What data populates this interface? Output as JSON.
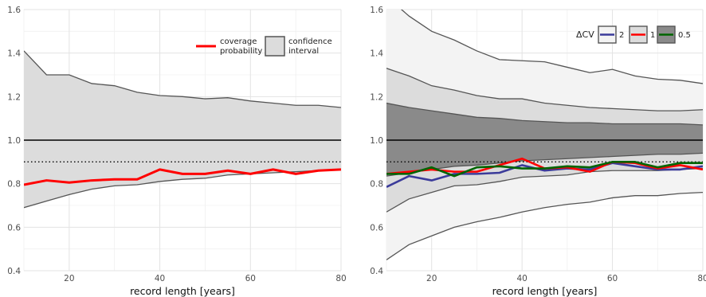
{
  "chart_data": [
    {
      "type": "line",
      "title": "",
      "xlabel": "record length [years]",
      "ylabel": "",
      "xlim": [
        10,
        80
      ],
      "ylim": [
        0.4,
        1.6
      ],
      "xticks": [
        20,
        40,
        60,
        80
      ],
      "yticks": [
        0.4,
        0.6,
        0.8,
        1.0,
        1.2,
        1.4,
        1.6
      ],
      "xtick_labels": [
        "20",
        "40",
        "60",
        "80"
      ],
      "ytick_labels": [
        "0.4",
        "0.6",
        "0.8",
        "1.0",
        "1.2",
        "1.4",
        "1.6"
      ],
      "grid": true,
      "legend_position": "top-right",
      "legend": {
        "line_label": [
          "coverage",
          "probability"
        ],
        "band_label": [
          "confidence",
          "interval"
        ]
      },
      "reference_lines": [
        {
          "y": 1.0,
          "style": "solid",
          "color": "#000000"
        },
        {
          "y": 0.9,
          "style": "dotted",
          "color": "#000000"
        }
      ],
      "x": [
        10,
        15,
        20,
        25,
        30,
        35,
        40,
        45,
        50,
        55,
        60,
        65,
        70,
        75,
        80
      ],
      "bands": [
        {
          "upper": [
            1.41,
            1.3,
            1.3,
            1.26,
            1.25,
            1.22,
            1.205,
            1.2,
            1.19,
            1.195,
            1.18,
            1.17,
            1.16,
            1.16,
            1.15
          ],
          "lower": [
            0.69,
            0.72,
            0.75,
            0.775,
            0.79,
            0.795,
            0.81,
            0.82,
            0.825,
            0.84,
            0.845,
            0.85,
            0.855,
            0.86,
            0.865
          ],
          "fill": "#dcdcdc"
        }
      ],
      "series": [
        {
          "color": "#ff0000",
          "values": [
            0.795,
            0.815,
            0.805,
            0.815,
            0.82,
            0.82,
            0.865,
            0.845,
            0.845,
            0.86,
            0.845,
            0.865,
            0.845,
            0.86,
            0.865
          ]
        }
      ]
    },
    {
      "type": "line",
      "title": "",
      "xlabel": "record length [years]",
      "ylabel": "",
      "xlim": [
        10,
        80
      ],
      "ylim": [
        0.4,
        1.6
      ],
      "xticks": [
        20,
        40,
        60,
        80
      ],
      "yticks": [
        0.4,
        0.6,
        0.8,
        1.0,
        1.2,
        1.4,
        1.6
      ],
      "xtick_labels": [
        "20",
        "40",
        "60",
        "80"
      ],
      "ytick_labels": [
        "0.4",
        "0.6",
        "0.8",
        "1.0",
        "1.2",
        "1.4",
        "1.6"
      ],
      "grid": true,
      "legend_position": "top-right",
      "legend": {
        "title": "ΔCV",
        "entries": [
          {
            "label": "2",
            "color": "#3b3b9a",
            "fill": "#f3f3f3"
          },
          {
            "label": "1",
            "color": "#ff0000",
            "fill": "#dcdcdc"
          },
          {
            "label": "0.5",
            "color": "#006400",
            "fill": "#8a8a8a"
          }
        ]
      },
      "reference_lines": [
        {
          "y": 1.0,
          "style": "solid",
          "color": "#000000"
        },
        {
          "y": 0.9,
          "style": "dotted",
          "color": "#000000"
        }
      ],
      "x": [
        10,
        15,
        20,
        25,
        30,
        35,
        40,
        45,
        50,
        55,
        60,
        65,
        70,
        75,
        80
      ],
      "bands": [
        {
          "name": "2",
          "upper": [
            1.66,
            1.57,
            1.5,
            1.46,
            1.41,
            1.37,
            1.365,
            1.36,
            1.335,
            1.31,
            1.325,
            1.295,
            1.28,
            1.275,
            1.26
          ],
          "lower": [
            0.45,
            0.52,
            0.56,
            0.6,
            0.625,
            0.645,
            0.67,
            0.69,
            0.705,
            0.715,
            0.735,
            0.745,
            0.745,
            0.755,
            0.76
          ],
          "fill": "#f3f3f3"
        },
        {
          "name": "1",
          "upper": [
            1.33,
            1.295,
            1.25,
            1.23,
            1.205,
            1.19,
            1.19,
            1.17,
            1.16,
            1.15,
            1.145,
            1.14,
            1.135,
            1.135,
            1.14
          ],
          "lower": [
            0.67,
            0.73,
            0.76,
            0.79,
            0.795,
            0.81,
            0.83,
            0.835,
            0.84,
            0.855,
            0.86,
            0.86,
            0.86,
            0.865,
            0.87
          ],
          "fill": "#dcdcdc"
        },
        {
          "name": "0.5",
          "upper": [
            1.17,
            1.15,
            1.135,
            1.12,
            1.105,
            1.1,
            1.09,
            1.085,
            1.08,
            1.08,
            1.075,
            1.075,
            1.075,
            1.075,
            1.07
          ],
          "lower": [
            0.835,
            0.85,
            0.865,
            0.88,
            0.885,
            0.895,
            0.905,
            0.91,
            0.915,
            0.92,
            0.925,
            0.93,
            0.935,
            0.935,
            0.94
          ],
          "fill": "#8a8a8a"
        }
      ],
      "series": [
        {
          "name": "2",
          "color": "#3b3b9a",
          "values": [
            0.785,
            0.835,
            0.815,
            0.845,
            0.845,
            0.85,
            0.885,
            0.86,
            0.87,
            0.865,
            0.895,
            0.88,
            0.865,
            0.865,
            0.88
          ]
        },
        {
          "name": "1",
          "color": "#ff0000",
          "values": [
            0.845,
            0.855,
            0.865,
            0.855,
            0.855,
            0.885,
            0.915,
            0.87,
            0.875,
            0.855,
            0.9,
            0.895,
            0.87,
            0.885,
            0.865
          ]
        },
        {
          "name": "0.5",
          "color": "#006400",
          "values": [
            0.845,
            0.845,
            0.875,
            0.835,
            0.875,
            0.88,
            0.87,
            0.87,
            0.88,
            0.875,
            0.9,
            0.9,
            0.875,
            0.895,
            0.895
          ]
        }
      ]
    }
  ]
}
